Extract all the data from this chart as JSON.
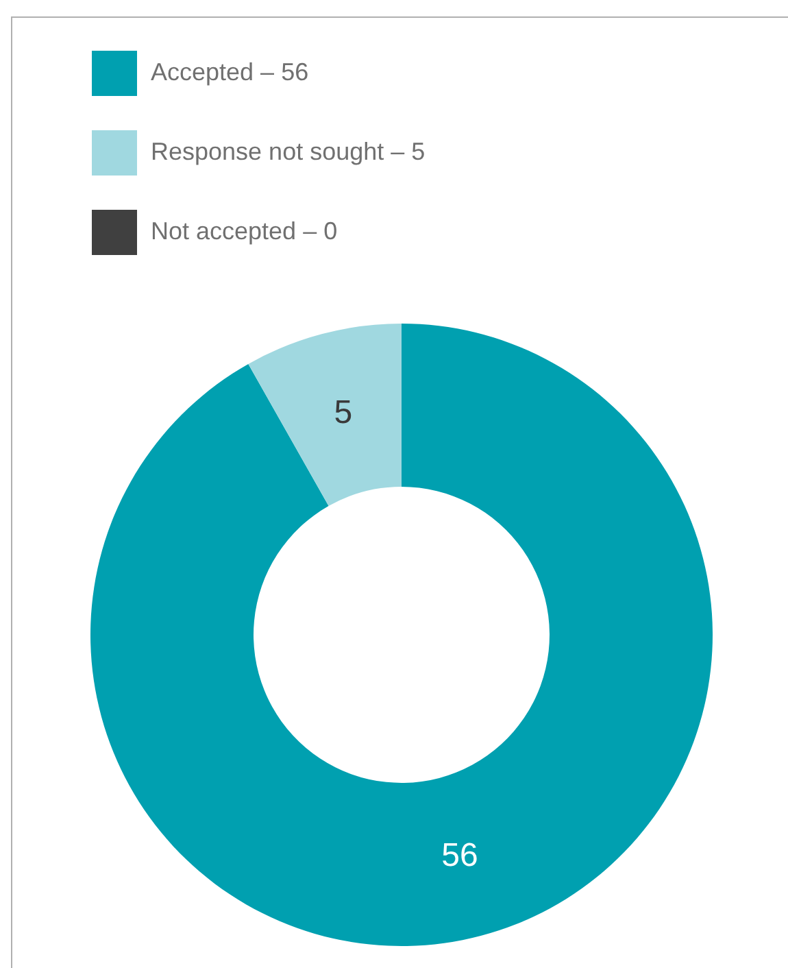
{
  "chart_data": {
    "type": "donut",
    "categories": [
      "Accepted – 56",
      "Response not sought – 5",
      "Not accepted – 0"
    ],
    "values": [
      56,
      5,
      0
    ],
    "colors": [
      "#00a0b0",
      "#a0d8e0",
      "#404040"
    ],
    "value_labels": [
      "56",
      "5",
      null
    ],
    "legend": "top left"
  }
}
